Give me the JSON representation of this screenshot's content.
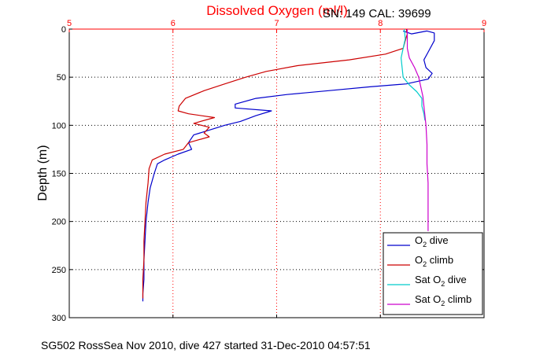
{
  "chart_data": {
    "type": "line",
    "title": "Dissolved Oxygen (ml/l)",
    "annotation": "SN: 149  CAL: 39699",
    "ylabel": "Depth (m)",
    "caption": "SG502 RossSea Nov 2010, dive 427 started 31-Dec-2010 04:57:51",
    "xlim": [
      5,
      9
    ],
    "ylim": [
      0,
      300
    ],
    "y_reversed": true,
    "xticks": [
      "5",
      "6",
      "7",
      "8",
      "9"
    ],
    "yticks": [
      "0",
      "50",
      "100",
      "150",
      "200",
      "250",
      "300"
    ],
    "grid": true,
    "legend_position": "lower-right",
    "series": [
      {
        "name": "O2 dive",
        "label_main": "O",
        "label_sub": "2",
        "label_rest": " dive",
        "color": "#0000cc",
        "points": [
          [
            8.22,
            2
          ],
          [
            8.3,
            5
          ],
          [
            8.45,
            2
          ],
          [
            8.52,
            4
          ],
          [
            8.52,
            12
          ],
          [
            8.46,
            24
          ],
          [
            8.42,
            32
          ],
          [
            8.44,
            40
          ],
          [
            8.5,
            46
          ],
          [
            8.46,
            52
          ],
          [
            8.25,
            57
          ],
          [
            7.9,
            60
          ],
          [
            7.5,
            64
          ],
          [
            7.1,
            68
          ],
          [
            6.8,
            72
          ],
          [
            6.6,
            78
          ],
          [
            6.6,
            82
          ],
          [
            6.95,
            85
          ],
          [
            6.8,
            90
          ],
          [
            6.65,
            96
          ],
          [
            6.5,
            100
          ],
          [
            6.35,
            105
          ],
          [
            6.2,
            110
          ],
          [
            6.15,
            118
          ],
          [
            6.18,
            125
          ],
          [
            6.05,
            130
          ],
          [
            5.92,
            136
          ],
          [
            5.85,
            140
          ],
          [
            5.82,
            150
          ],
          [
            5.78,
            165
          ],
          [
            5.76,
            180
          ],
          [
            5.74,
            200
          ],
          [
            5.73,
            220
          ],
          [
            5.72,
            240
          ],
          [
            5.72,
            260
          ],
          [
            5.71,
            275
          ],
          [
            5.71,
            283
          ]
        ]
      },
      {
        "name": "O2 climb",
        "label_main": "O",
        "label_sub": "2",
        "label_rest": " climb",
        "color": "#cc0000",
        "points": [
          [
            8.25,
            0
          ],
          [
            8.26,
            5
          ],
          [
            8.24,
            12
          ],
          [
            8.22,
            20
          ],
          [
            8.05,
            26
          ],
          [
            7.7,
            32
          ],
          [
            7.2,
            38
          ],
          [
            6.9,
            44
          ],
          [
            6.7,
            50
          ],
          [
            6.5,
            57
          ],
          [
            6.3,
            64
          ],
          [
            6.12,
            72
          ],
          [
            6.06,
            80
          ],
          [
            6.05,
            85
          ],
          [
            6.15,
            88
          ],
          [
            6.4,
            92
          ],
          [
            6.2,
            98
          ],
          [
            6.35,
            102
          ],
          [
            6.3,
            108
          ],
          [
            6.35,
            112
          ],
          [
            6.15,
            118
          ],
          [
            6.1,
            125
          ],
          [
            5.92,
            130
          ],
          [
            5.8,
            136
          ],
          [
            5.77,
            145
          ],
          [
            5.76,
            160
          ],
          [
            5.74,
            180
          ],
          [
            5.73,
            200
          ],
          [
            5.72,
            220
          ],
          [
            5.72,
            240
          ],
          [
            5.71,
            260
          ],
          [
            5.71,
            280
          ]
        ]
      },
      {
        "name": "Sat O2 dive",
        "label_main": "Sat O",
        "label_sub": "2",
        "label_rest": " dive",
        "color": "#00cccc",
        "points": [
          [
            8.23,
            0
          ],
          [
            8.24,
            10
          ],
          [
            8.22,
            20
          ],
          [
            8.2,
            30
          ],
          [
            8.21,
            40
          ],
          [
            8.22,
            50
          ],
          [
            8.28,
            58
          ],
          [
            8.35,
            65
          ],
          [
            8.4,
            72
          ],
          [
            8.4,
            80
          ],
          [
            8.42,
            88
          ],
          [
            8.43,
            95
          ]
        ]
      },
      {
        "name": "Sat O2 climb",
        "label_main": "Sat O",
        "label_sub": "2",
        "label_rest": " climb",
        "color": "#cc00cc",
        "points": [
          [
            8.26,
            0
          ],
          [
            8.26,
            10
          ],
          [
            8.26,
            20
          ],
          [
            8.28,
            30
          ],
          [
            8.33,
            40
          ],
          [
            8.37,
            50
          ],
          [
            8.39,
            60
          ],
          [
            8.41,
            70
          ],
          [
            8.42,
            80
          ],
          [
            8.43,
            90
          ],
          [
            8.44,
            100
          ],
          [
            8.45,
            120
          ],
          [
            8.45,
            140
          ],
          [
            8.46,
            160
          ],
          [
            8.46,
            180
          ],
          [
            8.46,
            200
          ],
          [
            8.46,
            210
          ]
        ]
      }
    ]
  }
}
